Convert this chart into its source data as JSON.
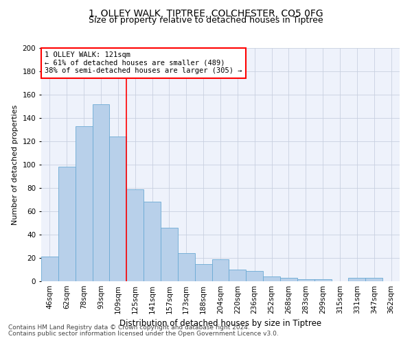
{
  "title1": "1, OLLEY WALK, TIPTREE, COLCHESTER, CO5 0FG",
  "title2": "Size of property relative to detached houses in Tiptree",
  "xlabel": "Distribution of detached houses by size in Tiptree",
  "ylabel": "Number of detached properties",
  "categories": [
    "46sqm",
    "62sqm",
    "78sqm",
    "93sqm",
    "109sqm",
    "125sqm",
    "141sqm",
    "157sqm",
    "173sqm",
    "188sqm",
    "204sqm",
    "220sqm",
    "236sqm",
    "252sqm",
    "268sqm",
    "283sqm",
    "299sqm",
    "315sqm",
    "331sqm",
    "347sqm",
    "362sqm"
  ],
  "values": [
    21,
    98,
    133,
    152,
    124,
    79,
    68,
    46,
    24,
    15,
    19,
    10,
    9,
    4,
    3,
    2,
    2,
    0,
    3,
    3,
    0
  ],
  "bar_color": "#b8d0ea",
  "bar_edge_color": "#6aaad4",
  "vline_index": 4.5,
  "annotation_text": "1 OLLEY WALK: 121sqm\n← 61% of detached houses are smaller (489)\n38% of semi-detached houses are larger (305) →",
  "annotation_box_color": "white",
  "annotation_box_edge_color": "red",
  "vline_color": "red",
  "ylim": [
    0,
    200
  ],
  "yticks": [
    0,
    20,
    40,
    60,
    80,
    100,
    120,
    140,
    160,
    180,
    200
  ],
  "footer1": "Contains HM Land Registry data © Crown copyright and database right 2024.",
  "footer2": "Contains public sector information licensed under the Open Government Licence v3.0.",
  "bg_color": "#eef2fb",
  "title1_fontsize": 10,
  "title2_fontsize": 9,
  "ylabel_fontsize": 8,
  "xlabel_fontsize": 8.5,
  "tick_fontsize": 7.5,
  "annotation_fontsize": 7.5,
  "footer_fontsize": 6.5
}
